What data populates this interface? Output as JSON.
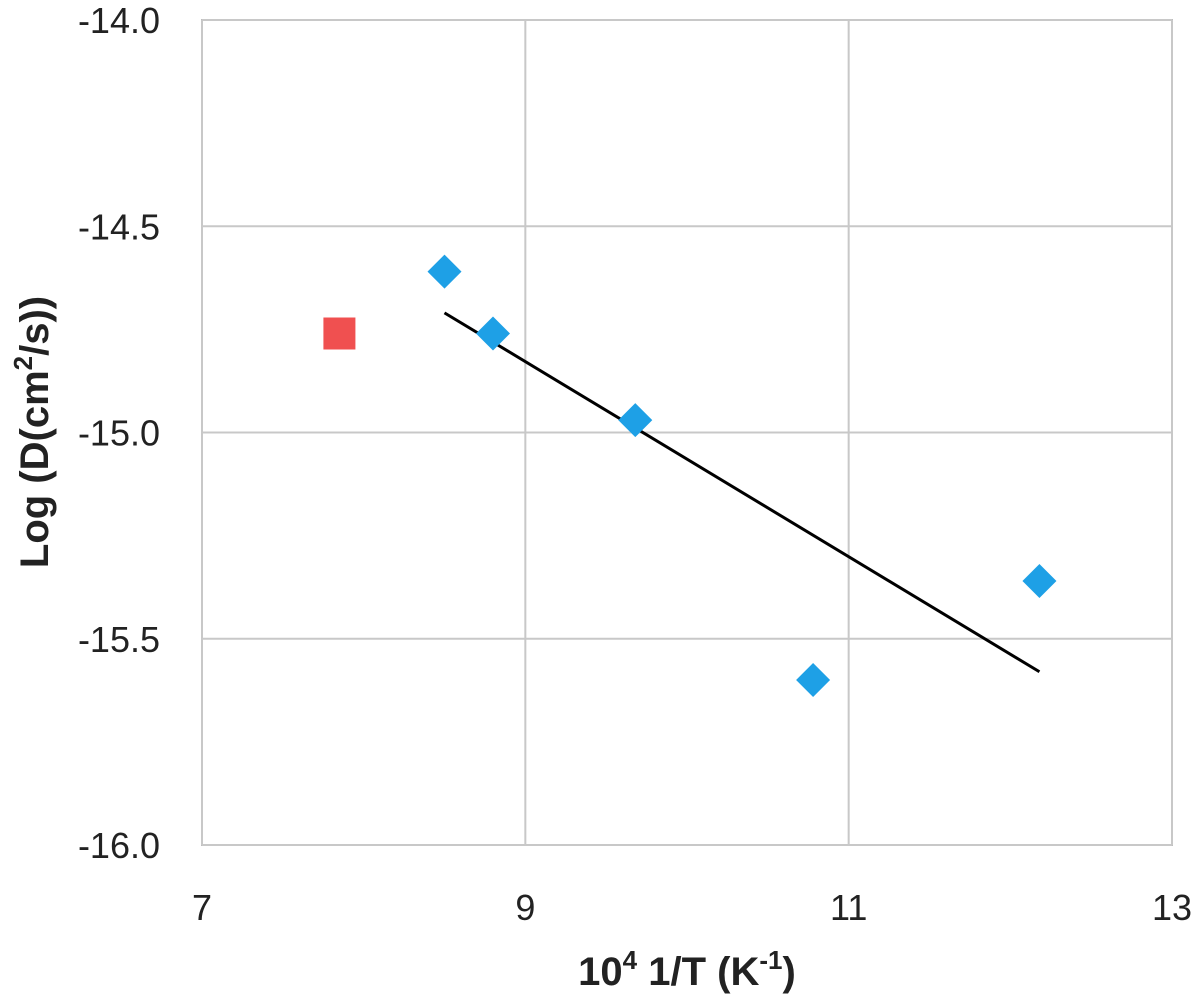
{
  "chart_data": {
    "type": "scatter",
    "xlabel": {
      "prefix": "10",
      "prefix_sup": "4",
      "main": " 1/T (K",
      "main_sup": "-1",
      "suffix": ")"
    },
    "ylabel": {
      "prefix": "Log (D(cm",
      "prefix_sup": "2",
      "suffix": "/s))"
    },
    "xlim": [
      7,
      13
    ],
    "ylim": [
      -16.0,
      -14.0
    ],
    "xticks": [
      7,
      9,
      11,
      13
    ],
    "xtick_labels": [
      "7",
      "9",
      "11",
      "13"
    ],
    "yticks": [
      -16.0,
      -15.5,
      -15.0,
      -14.5,
      -14.0
    ],
    "ytick_labels": [
      "-16.0",
      "-15.5",
      "-15.0",
      "-14.5",
      "-14.0"
    ],
    "grid": true,
    "series": [
      {
        "marker": "diamond",
        "color": "#1ea0e6",
        "points": [
          {
            "x": 8.5,
            "y": -14.61
          },
          {
            "x": 8.8,
            "y": -14.76
          },
          {
            "x": 9.68,
            "y": -14.97
          },
          {
            "x": 10.78,
            "y": -15.6
          },
          {
            "x": 12.18,
            "y": -15.36
          }
        ]
      },
      {
        "marker": "square",
        "color": "#f05050",
        "points": [
          {
            "x": 7.85,
            "y": -14.76
          }
        ]
      }
    ],
    "trendline": {
      "color": "#000000",
      "points": [
        {
          "x": 8.5,
          "y": -14.71
        },
        {
          "x": 12.18,
          "y": -15.58
        }
      ]
    }
  }
}
